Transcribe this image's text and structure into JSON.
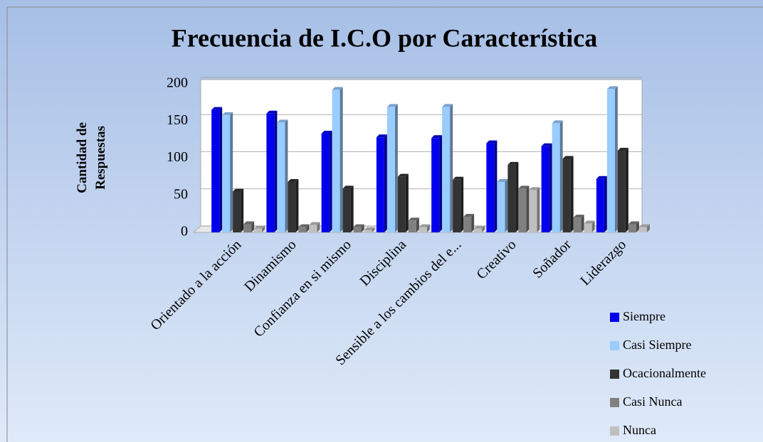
{
  "chart_data": {
    "type": "bar3d",
    "title": "Frecuencia de I.C.O por Característica",
    "ylabel": "Cantidad de Respuestas",
    "categories": [
      "Orientado a la acción",
      "Dinamismo",
      "Confianza en si mismo",
      "Disciplina",
      "Sensible a los cambios del e...",
      "Creativo",
      "Soñador",
      "Liderazgo"
    ],
    "series": [
      {
        "name": "Siempre",
        "color": "#0000ee",
        "values": [
          165,
          160,
          133,
          128,
          127,
          120,
          116,
          72
        ]
      },
      {
        "name": "Casi Siempre",
        "color": "#99ccff",
        "values": [
          158,
          148,
          192,
          169,
          169,
          68,
          147,
          193
        ]
      },
      {
        "name": "Ocacionalmente",
        "color": "#333333",
        "values": [
          55,
          68,
          59,
          75,
          71,
          91,
          99,
          110
        ]
      },
      {
        "name": "Casi Nunca",
        "color": "#808080",
        "values": [
          11,
          7,
          7,
          16,
          21,
          59,
          20,
          11
        ]
      },
      {
        "name": "Nunca",
        "color": "#c0c0c0",
        "values": [
          5,
          10,
          3,
          7,
          5,
          57,
          12,
          7
        ]
      }
    ],
    "ylim": [
      0,
      200
    ],
    "yticks": [
      0,
      50,
      100,
      150,
      200
    ],
    "grid": true,
    "legend": "bottom-right"
  }
}
